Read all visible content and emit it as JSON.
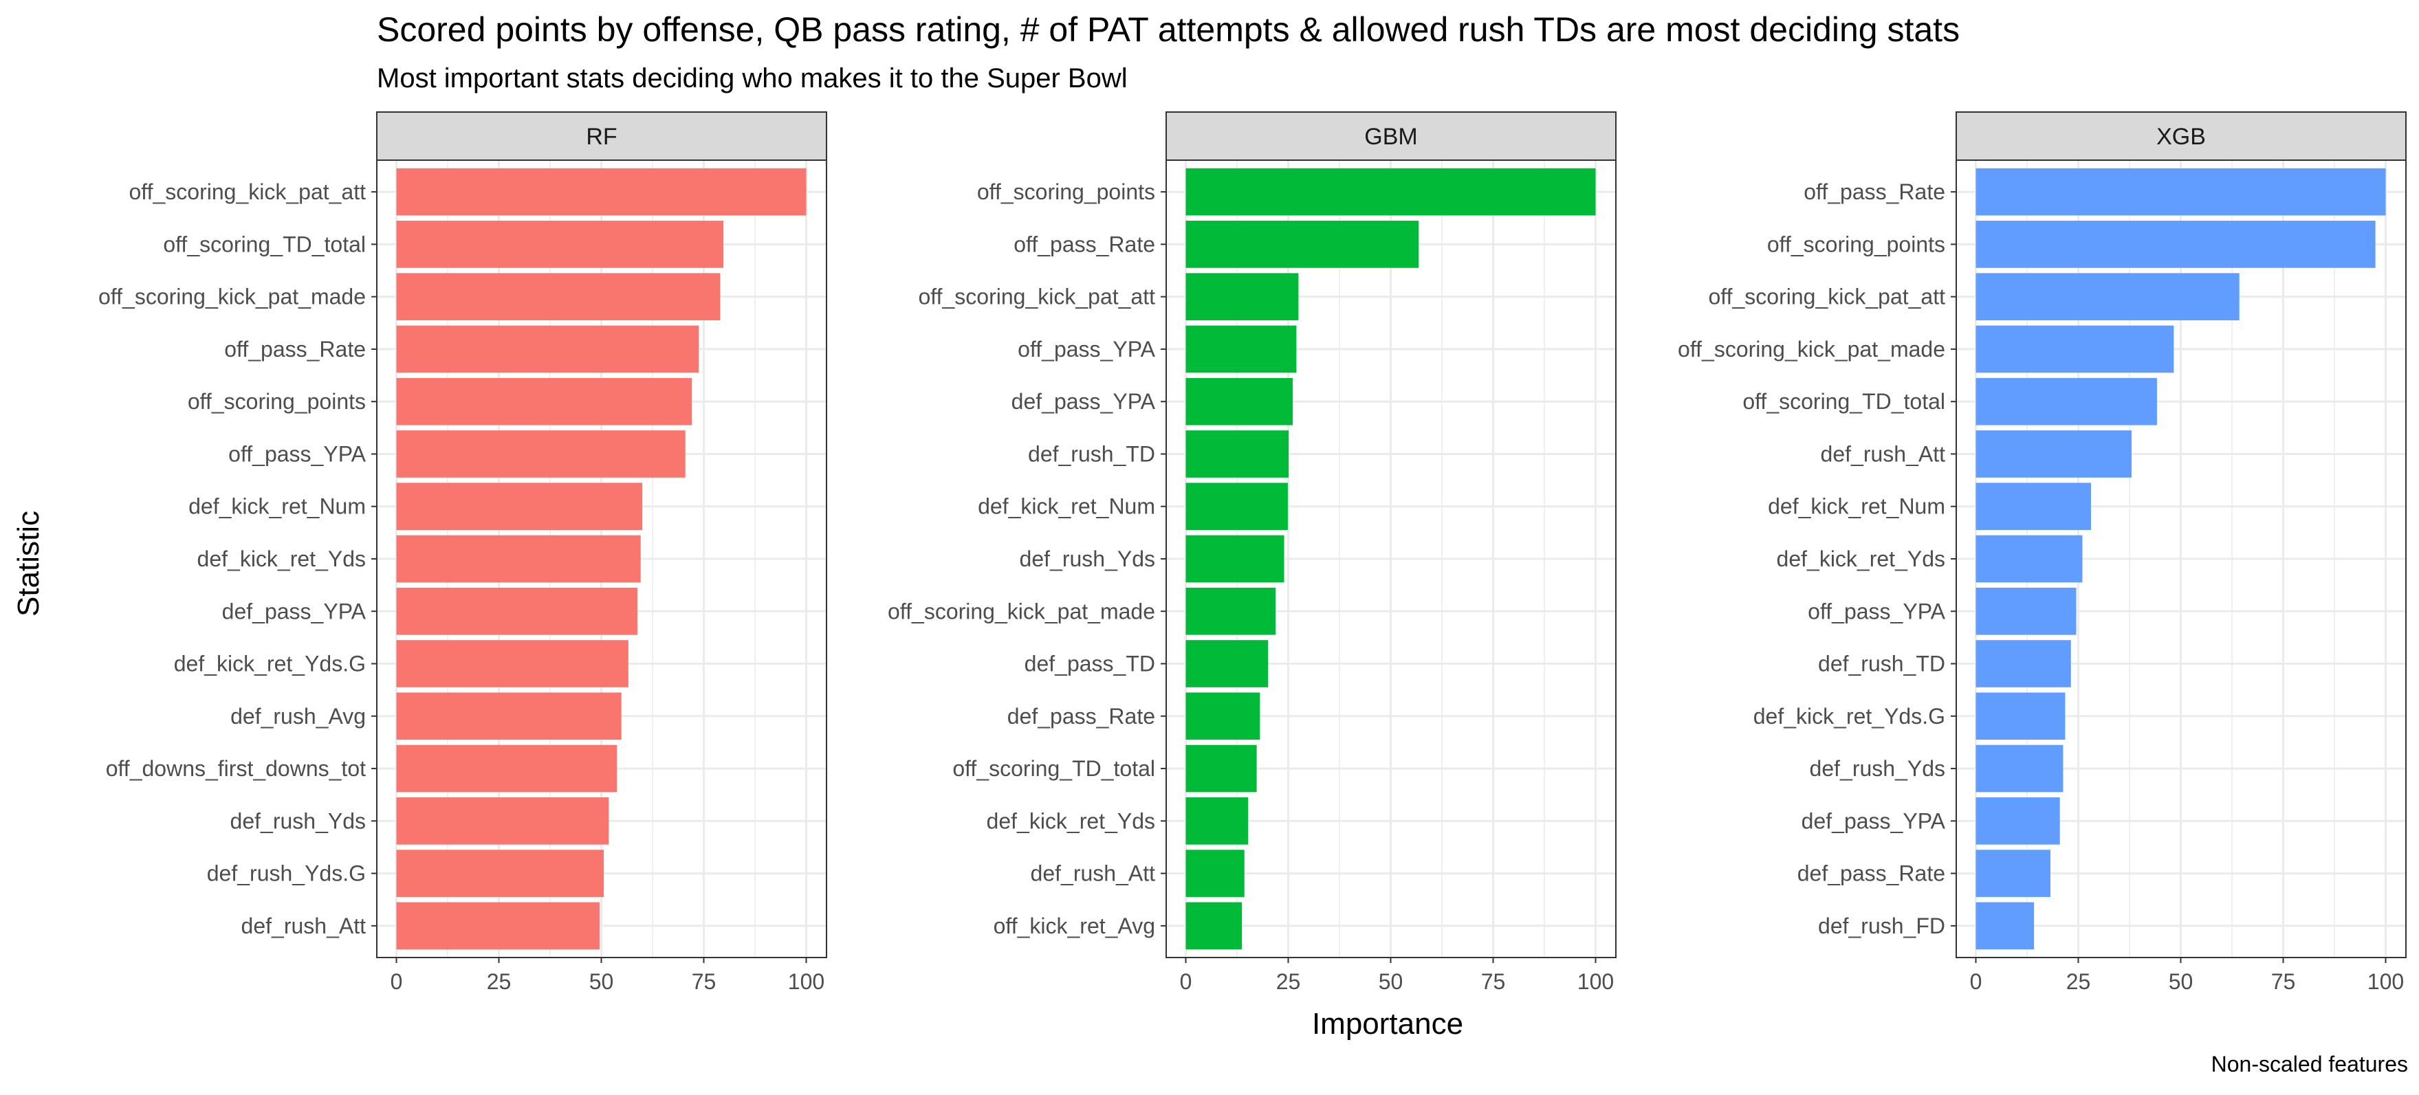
{
  "chart_data": {
    "type": "bar",
    "title": "Scored points by offense, QB pass rating, # of PAT attempts & allowed rush TDs are most deciding stats",
    "subtitle": "Most important stats deciding who makes it to the Super Bowl",
    "xlabel": "Importance",
    "ylabel": "Statistic",
    "caption": "Non-scaled features",
    "xlim": [
      0,
      104
    ],
    "x_ticks": [
      "0",
      "25",
      "50",
      "75",
      "100"
    ],
    "orientation": "horizontal",
    "grid": true,
    "panels": [
      {
        "name": "RF",
        "color": "#F8766D",
        "categories": [
          "off_scoring_kick_pat_att",
          "off_scoring_TD_total",
          "off_scoring_kick_pat_made",
          "off_pass_Rate",
          "off_scoring_points",
          "off_pass_YPA",
          "def_kick_ret_Num",
          "def_kick_ret_Yds",
          "def_pass_YPA",
          "def_kick_ret_Yds.G",
          "def_rush_Avg",
          "off_downs_first_downs_tot",
          "def_rush_Yds",
          "def_rush_Yds.G",
          "def_rush_Att"
        ],
        "values": [
          100,
          79.8,
          79,
          73.8,
          72.1,
          70.5,
          60,
          59.6,
          58.8,
          56.6,
          54.9,
          53.8,
          51.8,
          50.6,
          49.6
        ]
      },
      {
        "name": "GBM",
        "color": "#00BA38",
        "categories": [
          "off_scoring_points",
          "off_pass_Rate",
          "off_scoring_kick_pat_att",
          "off_pass_YPA",
          "def_pass_YPA",
          "def_rush_TD",
          "def_kick_ret_Num",
          "def_rush_Yds",
          "off_scoring_kick_pat_made",
          "def_pass_TD",
          "def_pass_Rate",
          "off_scoring_TD_total",
          "def_kick_ret_Yds",
          "def_rush_Att",
          "off_kick_ret_Avg"
        ],
        "values": [
          100,
          56.8,
          27.5,
          27,
          26.1,
          25.1,
          24.9,
          24,
          21.9,
          20.1,
          18.1,
          17.3,
          15.2,
          14.3,
          13.7
        ]
      },
      {
        "name": "XGB",
        "color": "#619CFF",
        "categories": [
          "off_pass_Rate",
          "off_scoring_points",
          "off_scoring_kick_pat_att",
          "off_scoring_kick_pat_made",
          "off_scoring_TD_total",
          "def_rush_Att",
          "def_kick_ret_Num",
          "def_kick_ret_Yds",
          "off_pass_YPA",
          "def_rush_TD",
          "def_kick_ret_Yds.G",
          "def_rush_Yds",
          "def_pass_YPA",
          "def_pass_Rate",
          "def_rush_FD"
        ],
        "values": [
          100,
          97.5,
          64.3,
          48.3,
          44.2,
          38,
          28.1,
          26,
          24.5,
          23.2,
          21.8,
          21.3,
          20.5,
          18.2,
          14.2
        ]
      }
    ]
  }
}
